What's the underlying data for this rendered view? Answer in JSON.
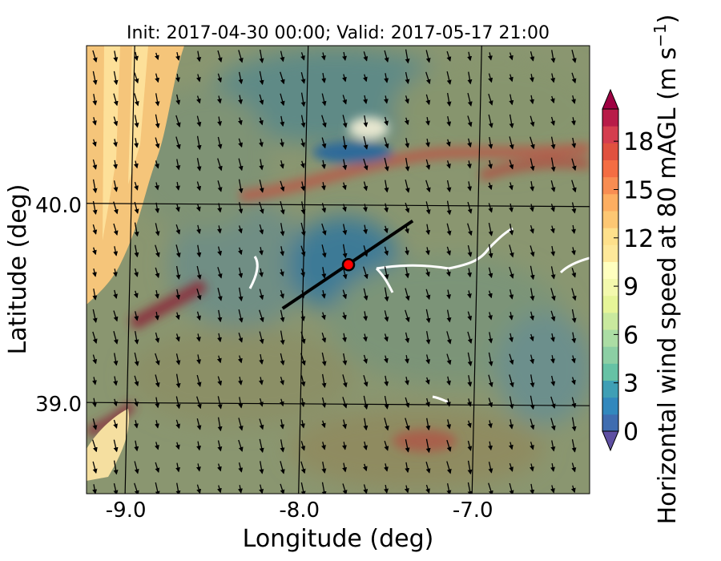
{
  "chart_data": {
    "type": "heatmap",
    "title": "Init: 2017-04-30 00:00; Valid: 2017-05-17 21:00",
    "xlabel": "Longitude (deg)",
    "ylabel": "Latitude (deg)",
    "xlim": [
      -9.25,
      -6.35
    ],
    "ylim": [
      38.55,
      40.8
    ],
    "x_ticks": [
      {
        "value": -9.0,
        "label": "-9.0"
      },
      {
        "value": -8.0,
        "label": "-8.0"
      },
      {
        "value": -7.0,
        "label": "-7.0"
      }
    ],
    "y_ticks": [
      {
        "value": 39.0,
        "label": "39.0"
      },
      {
        "value": 40.0,
        "label": "40.0"
      }
    ],
    "grid": true,
    "colorbar": {
      "label": "Horizontal wind speed at 80 mAGL (m s",
      "label_exp": "−1",
      "label_close": ")",
      "range": [
        0,
        20
      ],
      "ticks": [
        {
          "value": 0,
          "label": "0"
        },
        {
          "value": 3,
          "label": "3"
        },
        {
          "value": 6,
          "label": "6"
        },
        {
          "value": 9,
          "label": "9"
        },
        {
          "value": 12,
          "label": "12"
        },
        {
          "value": 15,
          "label": "15"
        },
        {
          "value": 18,
          "label": "18"
        }
      ],
      "extend": "both",
      "colors": [
        "#5e4fa2",
        "#3f6db0",
        "#3288bd",
        "#3f9fb5",
        "#66c2a5",
        "#8ccfa4",
        "#abdda4",
        "#c9e99e",
        "#e6f598",
        "#f3f9ad",
        "#ffffbf",
        "#fee89a",
        "#fee08b",
        "#fdc773",
        "#fdae61",
        "#f88d52",
        "#f46d43",
        "#e0513f",
        "#d53e4f",
        "#b81c48",
        "#9e0142"
      ]
    },
    "marker": {
      "lon": -7.74,
      "lat": 39.7,
      "color": "#ff0000"
    },
    "transect": {
      "start": [
        -8.12,
        39.48
      ],
      "end": [
        -7.37,
        39.92
      ]
    },
    "wind_direction": "northwesterly (vectors pointing to south-southeast)"
  }
}
